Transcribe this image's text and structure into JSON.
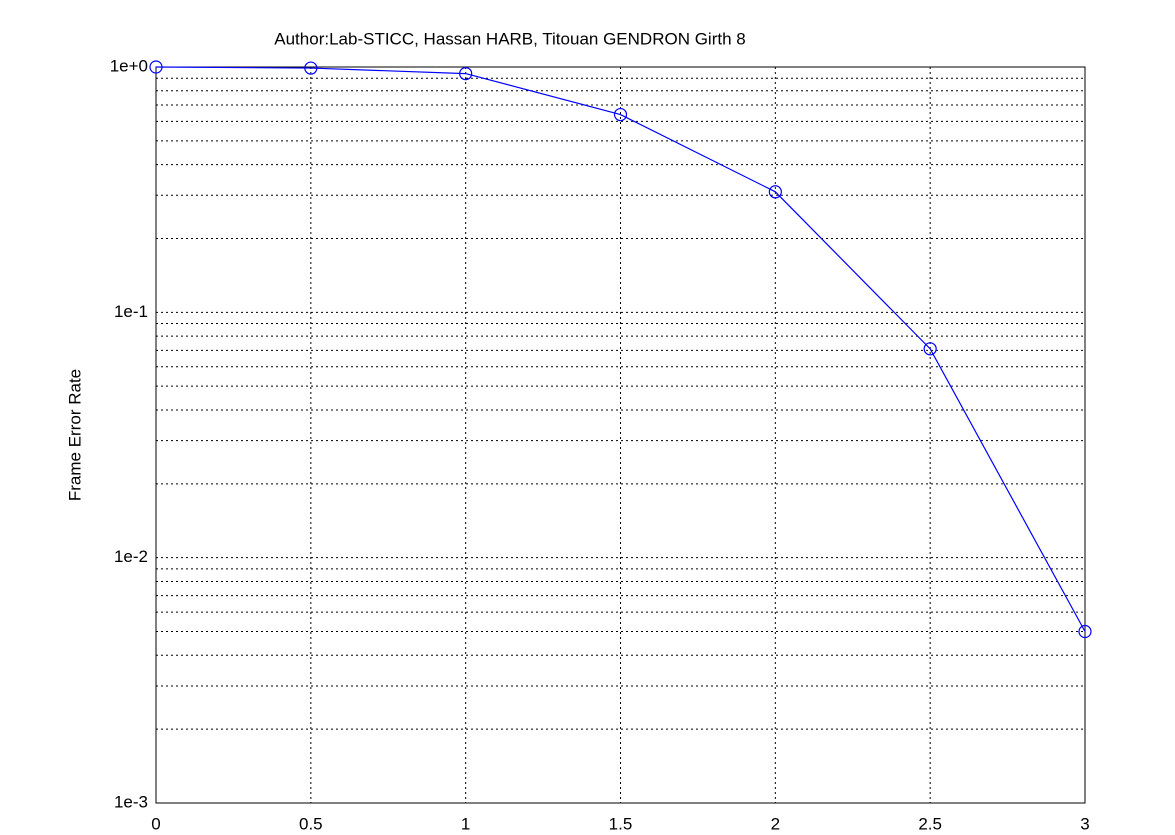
{
  "chart_data": {
    "type": "line",
    "title": "Author:Lab-STICC, Hassan HARB, Titouan GENDRON Girth 8",
    "y_label": "Frame Error Rate",
    "x": [
      0,
      0.5,
      1,
      1.5,
      2,
      2.5,
      3
    ],
    "series": [
      {
        "color": "#0000ff",
        "values": [
          1.0,
          0.99,
          0.94,
          0.64,
          0.31,
          0.071,
          0.005
        ]
      }
    ],
    "xlim": [
      0,
      3
    ],
    "xticks": [
      0,
      0.5,
      1,
      1.5,
      2,
      2.5,
      3
    ],
    "ylim": [
      0.001,
      1
    ],
    "y_scale": "log",
    "yticks": [
      {
        "value": 1,
        "label": "1e+0"
      },
      {
        "value": 0.1,
        "label": "1e-1"
      },
      {
        "value": 0.01,
        "label": "1e-2"
      },
      {
        "value": 0.001,
        "label": "1e-3"
      }
    ],
    "grid": true,
    "minor_grid": true,
    "marker": "circle"
  }
}
